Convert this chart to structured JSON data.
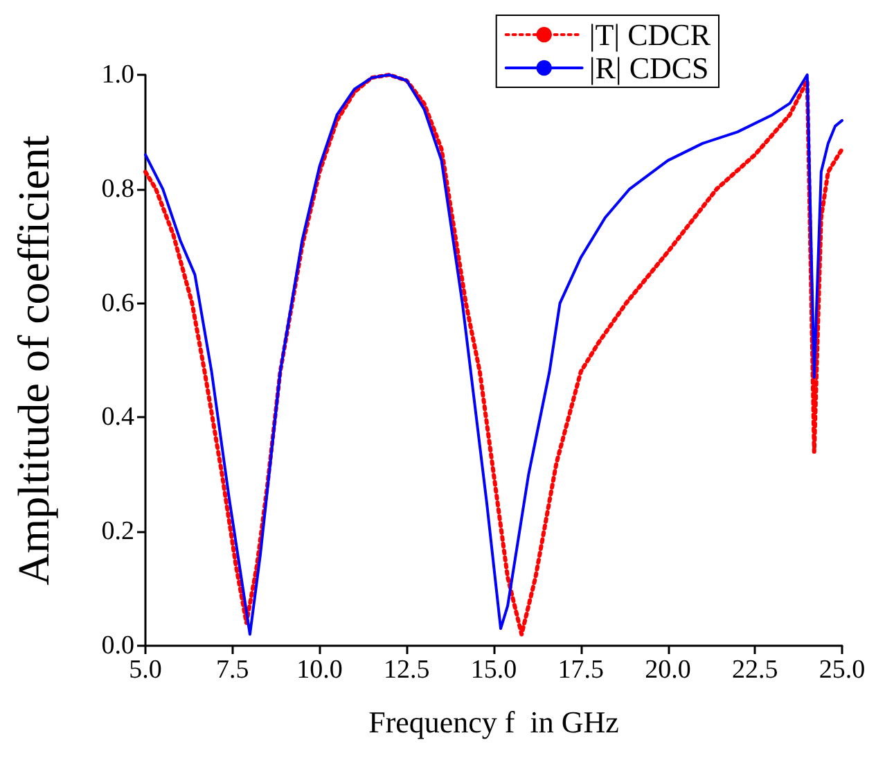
{
  "chart_data": {
    "type": "line",
    "xlabel": "Frequency f  in GHz",
    "ylabel": "Ampltitude of coefficient",
    "xlim": [
      5,
      25
    ],
    "xticks": [
      {
        "value": 5,
        "label": "5.0"
      },
      {
        "value": 7.5,
        "label": "7.5"
      },
      {
        "value": 10,
        "label": "10.0"
      },
      {
        "value": 12.5,
        "label": "12.5"
      },
      {
        "value": 15,
        "label": "15.0"
      },
      {
        "value": 17.5,
        "label": "17.5"
      },
      {
        "value": 20,
        "label": "20.0"
      },
      {
        "value": 22.5,
        "label": "22.5"
      },
      {
        "value": 25,
        "label": "25.0"
      }
    ],
    "ylim": [
      0,
      1
    ],
    "yticks": [
      {
        "value": 0,
        "label": "0.0"
      },
      {
        "value": 0.2,
        "label": "0.2"
      },
      {
        "value": 0.4,
        "label": "0.4"
      },
      {
        "value": 0.6,
        "label": "0.6"
      },
      {
        "value": 0.8,
        "label": "0.8"
      },
      {
        "value": 1,
        "label": "1.0"
      }
    ],
    "grid": false,
    "legend": "top right",
    "marker": "none",
    "series": [
      {
        "name": "|T| CDCR",
        "color": "#ff0000",
        "line_style": "dotted",
        "x": [
          5,
          5.3,
          5.8,
          6.34,
          6.7,
          7.2,
          7.6,
          7.9,
          8.2,
          8.5,
          8.87,
          9.5,
          10,
          10.5,
          11,
          11.5,
          12,
          12.5,
          13,
          13.5,
          14.2,
          14.6,
          15,
          15.4,
          15.8,
          16.2,
          16.8,
          17.5,
          18,
          18.8,
          20,
          21.4,
          22.5,
          23.5,
          24,
          24.2,
          24.4,
          24.6,
          25
        ],
        "values": [
          0.83,
          0.8,
          0.72,
          0.6,
          0.48,
          0.3,
          0.14,
          0.04,
          0.14,
          0.28,
          0.48,
          0.7,
          0.83,
          0.92,
          0.97,
          0.995,
          1,
          0.99,
          0.95,
          0.87,
          0.6,
          0.48,
          0.3,
          0.12,
          0.02,
          0.12,
          0.32,
          0.48,
          0.53,
          0.6,
          0.69,
          0.8,
          0.86,
          0.93,
          0.99,
          0.34,
          0.75,
          0.83,
          0.87
        ]
      },
      {
        "name": "|R| CDCS",
        "color": "#0000ff",
        "line_style": "solid",
        "x": [
          5,
          5.5,
          6,
          6.42,
          6.9,
          7.4,
          7.8,
          8,
          8.3,
          8.87,
          9.5,
          10,
          10.5,
          11,
          11.5,
          12,
          12.5,
          13,
          13.5,
          14.1,
          14.8,
          15.2,
          15.4,
          16,
          16.6,
          16.9,
          17.5,
          18.2,
          18.9,
          20,
          21,
          22,
          23,
          23.5,
          24,
          24.2,
          24.4,
          24.6,
          24.8,
          25
        ],
        "values": [
          0.86,
          0.8,
          0.71,
          0.65,
          0.48,
          0.26,
          0.1,
          0.02,
          0.16,
          0.48,
          0.71,
          0.84,
          0.93,
          0.975,
          0.995,
          1,
          0.99,
          0.94,
          0.85,
          0.6,
          0.25,
          0.03,
          0.07,
          0.3,
          0.48,
          0.6,
          0.68,
          0.75,
          0.8,
          0.85,
          0.88,
          0.9,
          0.93,
          0.95,
          1,
          0.47,
          0.83,
          0.88,
          0.91,
          0.92
        ]
      }
    ]
  }
}
